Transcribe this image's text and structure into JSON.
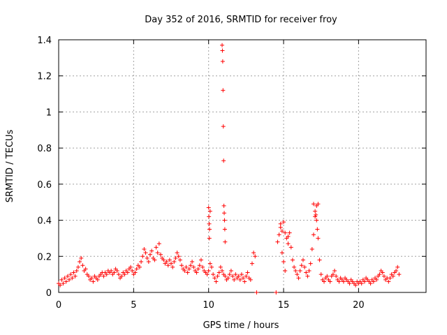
{
  "chart_data": {
    "type": "scatter",
    "title": "Day 352 of 2016, SRMTID for receiver froy",
    "xlabel": "GPS time / hours",
    "ylabel": "SRMTID / TECUs",
    "xlim": [
      0,
      24.5
    ],
    "ylim": [
      0,
      1.4
    ],
    "xticks": [
      0,
      5,
      10,
      15,
      20
    ],
    "xtick_labels": [
      "0",
      "5",
      "10",
      "15",
      "20"
    ],
    "yticks": [
      0,
      0.2,
      0.4,
      0.6,
      0.8,
      1.0,
      1.2,
      1.4
    ],
    "ytick_labels": [
      "0",
      "0.2",
      "0.4",
      "0.6",
      "0.8",
      "1",
      "1.2",
      "1.4"
    ],
    "grid": true,
    "marker": "+",
    "marker_color": "#ff0000",
    "series": [
      {
        "name": "SRMTID",
        "points": [
          [
            0.0,
            0.05
          ],
          [
            0.1,
            0.04
          ],
          [
            0.2,
            0.07
          ],
          [
            0.3,
            0.05
          ],
          [
            0.4,
            0.08
          ],
          [
            0.5,
            0.06
          ],
          [
            0.6,
            0.09
          ],
          [
            0.7,
            0.07
          ],
          [
            0.8,
            0.1
          ],
          [
            0.9,
            0.08
          ],
          [
            1.0,
            0.11
          ],
          [
            1.1,
            0.09
          ],
          [
            1.2,
            0.12
          ],
          [
            1.3,
            0.14
          ],
          [
            1.4,
            0.17
          ],
          [
            1.5,
            0.19
          ],
          [
            1.6,
            0.15
          ],
          [
            1.7,
            0.12
          ],
          [
            1.8,
            0.13
          ],
          [
            1.9,
            0.1
          ],
          [
            2.0,
            0.09
          ],
          [
            2.1,
            0.07
          ],
          [
            2.2,
            0.08
          ],
          [
            2.3,
            0.06
          ],
          [
            2.4,
            0.09
          ],
          [
            2.5,
            0.08
          ],
          [
            2.6,
            0.07
          ],
          [
            2.7,
            0.09
          ],
          [
            2.8,
            0.1
          ],
          [
            2.9,
            0.11
          ],
          [
            3.0,
            0.09
          ],
          [
            3.1,
            0.11
          ],
          [
            3.2,
            0.1
          ],
          [
            3.3,
            0.12
          ],
          [
            3.4,
            0.11
          ],
          [
            3.5,
            0.12
          ],
          [
            3.6,
            0.1
          ],
          [
            3.7,
            0.11
          ],
          [
            3.8,
            0.13
          ],
          [
            3.9,
            0.12
          ],
          [
            4.0,
            0.1
          ],
          [
            4.1,
            0.08
          ],
          [
            4.2,
            0.09
          ],
          [
            4.3,
            0.11
          ],
          [
            4.4,
            0.1
          ],
          [
            4.5,
            0.12
          ],
          [
            4.6,
            0.11
          ],
          [
            4.7,
            0.13
          ],
          [
            4.8,
            0.14
          ],
          [
            4.9,
            0.12
          ],
          [
            5.0,
            0.1
          ],
          [
            5.1,
            0.11
          ],
          [
            5.2,
            0.13
          ],
          [
            5.3,
            0.15
          ],
          [
            5.4,
            0.14
          ],
          [
            5.5,
            0.17
          ],
          [
            5.6,
            0.2
          ],
          [
            5.7,
            0.24
          ],
          [
            5.8,
            0.22
          ],
          [
            5.9,
            0.19
          ],
          [
            6.0,
            0.17
          ],
          [
            6.1,
            0.21
          ],
          [
            6.2,
            0.23
          ],
          [
            6.3,
            0.19
          ],
          [
            6.4,
            0.18
          ],
          [
            6.5,
            0.25
          ],
          [
            6.6,
            0.22
          ],
          [
            6.7,
            0.27
          ],
          [
            6.8,
            0.21
          ],
          [
            6.9,
            0.19
          ],
          [
            7.0,
            0.18
          ],
          [
            7.1,
            0.16
          ],
          [
            7.2,
            0.17
          ],
          [
            7.3,
            0.15
          ],
          [
            7.4,
            0.18
          ],
          [
            7.5,
            0.16
          ],
          [
            7.6,
            0.14
          ],
          [
            7.7,
            0.17
          ],
          [
            7.8,
            0.19
          ],
          [
            7.9,
            0.22
          ],
          [
            8.0,
            0.2
          ],
          [
            8.1,
            0.18
          ],
          [
            8.2,
            0.15
          ],
          [
            8.3,
            0.13
          ],
          [
            8.4,
            0.12
          ],
          [
            8.5,
            0.14
          ],
          [
            8.6,
            0.11
          ],
          [
            8.7,
            0.13
          ],
          [
            8.8,
            0.15
          ],
          [
            8.9,
            0.17
          ],
          [
            9.0,
            0.14
          ],
          [
            9.1,
            0.12
          ],
          [
            9.2,
            0.11
          ],
          [
            9.3,
            0.13
          ],
          [
            9.4,
            0.15
          ],
          [
            9.5,
            0.18
          ],
          [
            9.6,
            0.14
          ],
          [
            9.7,
            0.12
          ],
          [
            9.8,
            0.11
          ],
          [
            9.9,
            0.1
          ],
          [
            10.0,
            0.12
          ],
          [
            10.1,
            0.16
          ],
          [
            10.2,
            0.14
          ],
          [
            10.3,
            0.1
          ],
          [
            10.4,
            0.08
          ],
          [
            10.5,
            0.06
          ],
          [
            10.6,
            0.09
          ],
          [
            10.7,
            0.11
          ],
          [
            10.8,
            0.14
          ],
          [
            10.9,
            0.12
          ],
          [
            11.0,
            0.1
          ],
          [
            11.1,
            0.09
          ],
          [
            11.2,
            0.07
          ],
          [
            11.3,
            0.08
          ],
          [
            11.4,
            0.1
          ],
          [
            11.5,
            0.12
          ],
          [
            11.6,
            0.09
          ],
          [
            11.7,
            0.07
          ],
          [
            11.8,
            0.1
          ],
          [
            11.9,
            0.08
          ],
          [
            12.0,
            0.09
          ],
          [
            12.1,
            0.07
          ],
          [
            12.2,
            0.1
          ],
          [
            12.3,
            0.08
          ],
          [
            12.4,
            0.06
          ],
          [
            12.5,
            0.09
          ],
          [
            12.6,
            0.11
          ],
          [
            12.7,
            0.08
          ],
          [
            12.8,
            0.07
          ],
          [
            12.9,
            0.16
          ],
          [
            13.0,
            0.22
          ],
          [
            13.1,
            0.2
          ],
          [
            13.2,
            0.0
          ],
          [
            14.5,
            0.0
          ],
          [
            14.6,
            0.28
          ],
          [
            14.7,
            0.32
          ],
          [
            14.8,
            0.36
          ],
          [
            14.9,
            0.22
          ],
          [
            15.0,
            0.17
          ],
          [
            15.1,
            0.12
          ],
          [
            15.2,
            0.3
          ],
          [
            15.3,
            0.27
          ],
          [
            15.4,
            0.33
          ],
          [
            15.5,
            0.25
          ],
          [
            15.6,
            0.18
          ],
          [
            15.7,
            0.14
          ],
          [
            15.8,
            0.12
          ],
          [
            15.9,
            0.1
          ],
          [
            16.0,
            0.08
          ],
          [
            16.1,
            0.12
          ],
          [
            16.2,
            0.15
          ],
          [
            16.3,
            0.18
          ],
          [
            16.4,
            0.14
          ],
          [
            16.5,
            0.11
          ],
          [
            16.6,
            0.09
          ],
          [
            16.7,
            0.12
          ],
          [
            16.8,
            0.16
          ],
          [
            16.9,
            0.24
          ],
          [
            17.0,
            0.32
          ],
          [
            17.1,
            0.42
          ],
          [
            17.2,
            0.48
          ],
          [
            17.3,
            0.3
          ],
          [
            17.4,
            0.18
          ],
          [
            17.5,
            0.1
          ],
          [
            17.6,
            0.07
          ],
          [
            17.7,
            0.06
          ],
          [
            17.8,
            0.08
          ],
          [
            17.9,
            0.09
          ],
          [
            18.0,
            0.07
          ],
          [
            18.1,
            0.06
          ],
          [
            18.2,
            0.09
          ],
          [
            18.3,
            0.1
          ],
          [
            18.4,
            0.12
          ],
          [
            18.5,
            0.09
          ],
          [
            18.6,
            0.07
          ],
          [
            18.7,
            0.06
          ],
          [
            18.8,
            0.08
          ],
          [
            18.9,
            0.07
          ],
          [
            19.0,
            0.06
          ],
          [
            19.1,
            0.08
          ],
          [
            19.2,
            0.07
          ],
          [
            19.3,
            0.06
          ],
          [
            19.4,
            0.05
          ],
          [
            19.5,
            0.07
          ],
          [
            19.6,
            0.06
          ],
          [
            19.7,
            0.05
          ],
          [
            19.8,
            0.04
          ],
          [
            19.9,
            0.06
          ],
          [
            20.0,
            0.05
          ],
          [
            20.1,
            0.06
          ],
          [
            20.2,
            0.05
          ],
          [
            20.3,
            0.07
          ],
          [
            20.4,
            0.06
          ],
          [
            20.5,
            0.08
          ],
          [
            20.6,
            0.07
          ],
          [
            20.7,
            0.06
          ],
          [
            20.8,
            0.05
          ],
          [
            20.9,
            0.07
          ],
          [
            21.0,
            0.06
          ],
          [
            21.1,
            0.08
          ],
          [
            21.2,
            0.07
          ],
          [
            21.3,
            0.09
          ],
          [
            21.4,
            0.1
          ],
          [
            21.5,
            0.12
          ],
          [
            21.6,
            0.11
          ],
          [
            21.7,
            0.09
          ],
          [
            21.8,
            0.07
          ],
          [
            21.9,
            0.08
          ],
          [
            22.0,
            0.06
          ],
          [
            22.1,
            0.08
          ],
          [
            22.2,
            0.1
          ],
          [
            22.3,
            0.09
          ],
          [
            22.4,
            0.11
          ],
          [
            22.5,
            0.12
          ],
          [
            22.6,
            0.14
          ],
          [
            22.7,
            0.1
          ],
          [
            10.0,
            0.47
          ],
          [
            10.02,
            0.42
          ],
          [
            10.04,
            0.38
          ],
          [
            10.06,
            0.35
          ],
          [
            10.1,
            0.45
          ],
          [
            10.05,
            0.3
          ],
          [
            10.9,
            1.37
          ],
          [
            10.92,
            1.34
          ],
          [
            10.94,
            1.28
          ],
          [
            10.96,
            1.12
          ],
          [
            10.98,
            0.92
          ],
          [
            11.0,
            0.73
          ],
          [
            11.02,
            0.48
          ],
          [
            11.04,
            0.44
          ],
          [
            11.06,
            0.4
          ],
          [
            11.08,
            0.35
          ],
          [
            11.1,
            0.28
          ],
          [
            14.8,
            0.38
          ],
          [
            14.9,
            0.34
          ],
          [
            15.0,
            0.39
          ],
          [
            15.1,
            0.33
          ],
          [
            15.3,
            0.31
          ],
          [
            17.0,
            0.49
          ],
          [
            17.1,
            0.45
          ],
          [
            17.15,
            0.43
          ],
          [
            17.2,
            0.4
          ],
          [
            17.25,
            0.35
          ],
          [
            17.3,
            0.49
          ]
        ]
      }
    ]
  }
}
